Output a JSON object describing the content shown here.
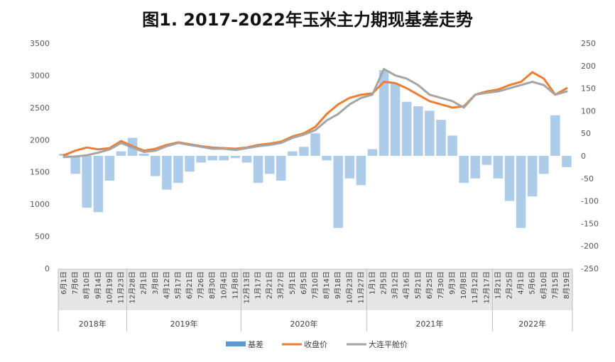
{
  "chart_data": {
    "type": "bar-line-combo",
    "title": "图1. 2017-2022年玉米主力期现基差走势",
    "xlabel": "",
    "ylabel": "",
    "ylim_left": [
      0,
      3500
    ],
    "ylim_right": [
      -250,
      250
    ],
    "yticks_left": [
      0,
      500,
      1000,
      1500,
      2000,
      2500,
      3000,
      3500
    ],
    "yticks_right": [
      -250,
      -200,
      -150,
      -100,
      -50,
      0,
      50,
      100,
      150,
      200,
      250
    ],
    "grid": false,
    "legend_position": "bottom",
    "categories": [
      "6月1日",
      "7月6日",
      "8月10日",
      "9月14日",
      "10月19日",
      "11月23日",
      "12月28日",
      "2月1日",
      "3月8日",
      "4月12日",
      "5月17日",
      "6月21日",
      "7月26日",
      "8月30日",
      "10月4日",
      "11月8日",
      "12月13日",
      "1月17日",
      "2月21日",
      "3月27日",
      "5月1日",
      "6月5日",
      "7月10日",
      "8月14日",
      "9月18日",
      "10月23日",
      "11月27日",
      "1月1日",
      "2月5日",
      "3月12日",
      "4月16日",
      "5月21日",
      "6月25日",
      "7月30日",
      "9月3日",
      "10月8日",
      "11月12日",
      "12月17日",
      "1月21日",
      "2月25日",
      "4月1日",
      "5月6日",
      "6月10日",
      "7月15日",
      "8月19日"
    ],
    "year_groups": [
      {
        "label": "2018年",
        "count": 6
      },
      {
        "label": "2019年",
        "count": 10
      },
      {
        "label": "2020年",
        "count": 11
      },
      {
        "label": "2021年",
        "count": 11
      },
      {
        "label": "2022年",
        "count": 7
      }
    ],
    "series": [
      {
        "name": "基差",
        "type": "bar",
        "axis": "right",
        "color": "#9dc3e6",
        "values": [
          5,
          -40,
          -115,
          -125,
          -55,
          10,
          40,
          5,
          -45,
          -75,
          -60,
          -35,
          -15,
          -10,
          -10,
          -5,
          -15,
          -60,
          -40,
          -55,
          10,
          20,
          50,
          -10,
          -160,
          -50,
          -65,
          15,
          190,
          160,
          120,
          110,
          100,
          80,
          45,
          -60,
          -50,
          -20,
          -50,
          -100,
          -160,
          -90,
          -40,
          90,
          -25
        ]
      },
      {
        "name": "收盘价",
        "type": "line",
        "axis": "left",
        "color": "#ed7d31",
        "values": [
          1760,
          1830,
          1880,
          1850,
          1870,
          1980,
          1900,
          1830,
          1860,
          1920,
          1960,
          1930,
          1900,
          1880,
          1870,
          1860,
          1880,
          1920,
          1940,
          1970,
          2050,
          2100,
          2200,
          2400,
          2550,
          2650,
          2700,
          2720,
          2900,
          2880,
          2800,
          2700,
          2600,
          2550,
          2500,
          2520,
          2700,
          2750,
          2780,
          2850,
          2900,
          3050,
          2950,
          2700,
          2800
        ]
      },
      {
        "name": "大连平舱价",
        "type": "line",
        "axis": "left",
        "color": "#a5a5a5",
        "values": [
          1730,
          1740,
          1760,
          1800,
          1850,
          1950,
          1880,
          1810,
          1830,
          1900,
          1950,
          1920,
          1890,
          1860,
          1860,
          1840,
          1870,
          1900,
          1920,
          1950,
          2030,
          2080,
          2150,
          2300,
          2400,
          2550,
          2650,
          2700,
          3100,
          3000,
          2950,
          2850,
          2700,
          2650,
          2600,
          2500,
          2700,
          2730,
          2750,
          2800,
          2850,
          2900,
          2850,
          2700,
          2750
        ]
      }
    ]
  }
}
